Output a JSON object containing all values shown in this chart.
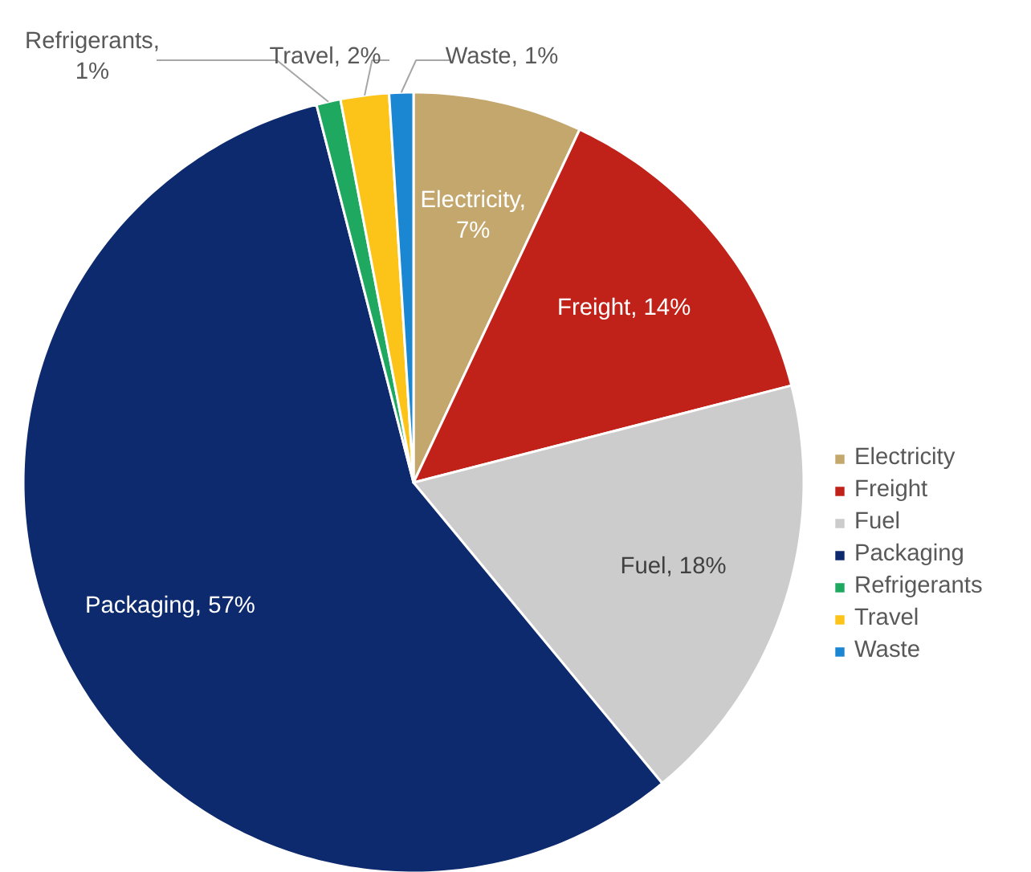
{
  "chart_data": {
    "type": "pie",
    "categories": [
      "Electricity",
      "Freight",
      "Fuel",
      "Packaging",
      "Refrigerants",
      "Travel",
      "Waste"
    ],
    "values": [
      7,
      14,
      18,
      57,
      1,
      2,
      1
    ],
    "colors": [
      "#c4a76c",
      "#c0221a",
      "#cccccc",
      "#0c2a6d",
      "#1fa860",
      "#fcc419",
      "#1b87d3"
    ],
    "value_labels": [
      "Electricity,\n7%",
      "Freight, 14%",
      "Fuel, 18%",
      "Packaging, 57%",
      "Refrigerants,\n1%",
      "Travel, 2%",
      "Waste, 1%"
    ],
    "legend": "right"
  }
}
